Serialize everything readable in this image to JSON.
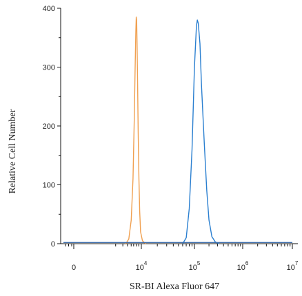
{
  "chart_data": {
    "type": "line",
    "title": "",
    "xlabel": "SR-BI  Alexa Fluor 647",
    "ylabel": "Relative Cell Number",
    "x_scale": "biexponential",
    "xlim": [
      -1000,
      10000000
    ],
    "ylim": [
      0,
      400
    ],
    "grid": false,
    "legend": "none",
    "y_ticks": [
      "0",
      "100",
      "200",
      "300",
      "400"
    ],
    "x_ticks": [
      {
        "value": 0,
        "base": "0",
        "exp": ""
      },
      {
        "value": 10000,
        "base": "10",
        "exp": "4"
      },
      {
        "value": 100000,
        "base": "10",
        "exp": "5"
      },
      {
        "value": 1000000,
        "base": "10",
        "exp": "6"
      },
      {
        "value": 10000000,
        "base": "10",
        "exp": "7"
      }
    ],
    "series": [
      {
        "color": "#f0a050",
        "x": [
          1200,
          1800,
          2500,
          3200,
          3800,
          4300,
          4700,
          5000,
          5300,
          5600,
          6000,
          6500,
          7200,
          8000,
          9000,
          10500,
          12000
        ],
        "y": [
          0,
          8,
          40,
          110,
          210,
          300,
          360,
          385,
          380,
          340,
          270,
          190,
          110,
          55,
          20,
          5,
          0
        ]
      },
      {
        "color": "#2a7fd0",
        "x": [
          60000,
          70000,
          80000,
          90000,
          100000,
          110000,
          115000,
          120000,
          130000,
          140000,
          160000,
          180000,
          200000,
          230000,
          270000,
          320000
        ],
        "y": [
          0,
          10,
          60,
          160,
          300,
          370,
          380,
          375,
          340,
          270,
          170,
          90,
          40,
          12,
          3,
          0
        ]
      },
      {
        "color": "#3a6aa8",
        "x": [
          -1000,
          10000000
        ],
        "y": [
          2,
          2
        ]
      }
    ]
  }
}
